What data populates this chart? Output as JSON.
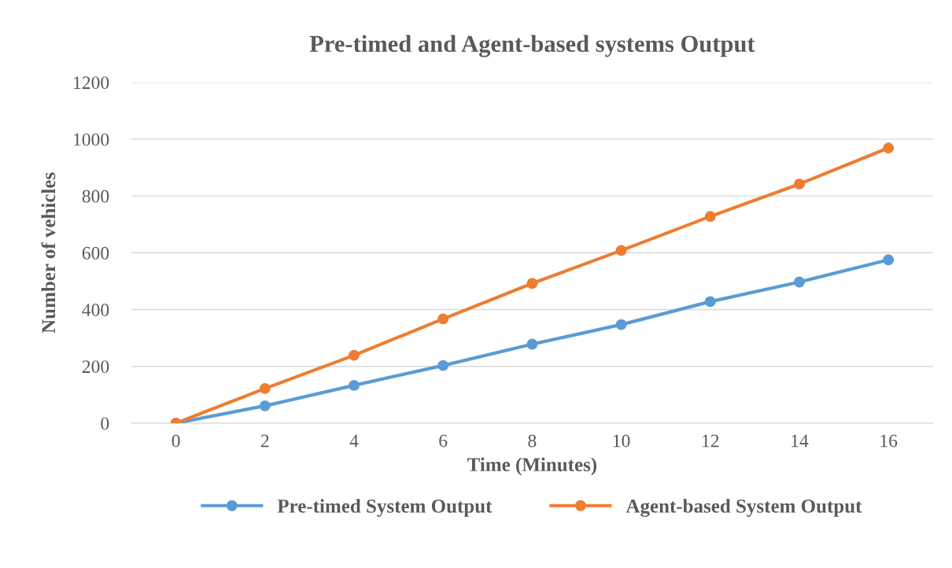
{
  "chart_data": {
    "type": "line",
    "title": "Pre-timed and Agent-based systems Output",
    "xlabel": "Time (Minutes)",
    "ylabel": "Number of vehicles",
    "categories": [
      "0",
      "2",
      "4",
      "6",
      "8",
      "10",
      "12",
      "14",
      "16"
    ],
    "series": [
      {
        "name": "Pre-timed System Output",
        "color": "#5b9bd5",
        "values": [
          0,
          61,
          133,
          203,
          278,
          347,
          428,
          497,
          575
        ]
      },
      {
        "name": "Agent-based System Output",
        "color": "#ed7d31",
        "values": [
          0,
          122,
          239,
          367,
          492,
          608,
          728,
          842,
          969
        ]
      }
    ],
    "ylim": [
      0,
      1200
    ],
    "yticks": [
      0,
      200,
      400,
      600,
      800,
      1000,
      1200
    ],
    "grid": "y",
    "legend": "bottom",
    "marker": "circle",
    "line_style": "solid"
  }
}
